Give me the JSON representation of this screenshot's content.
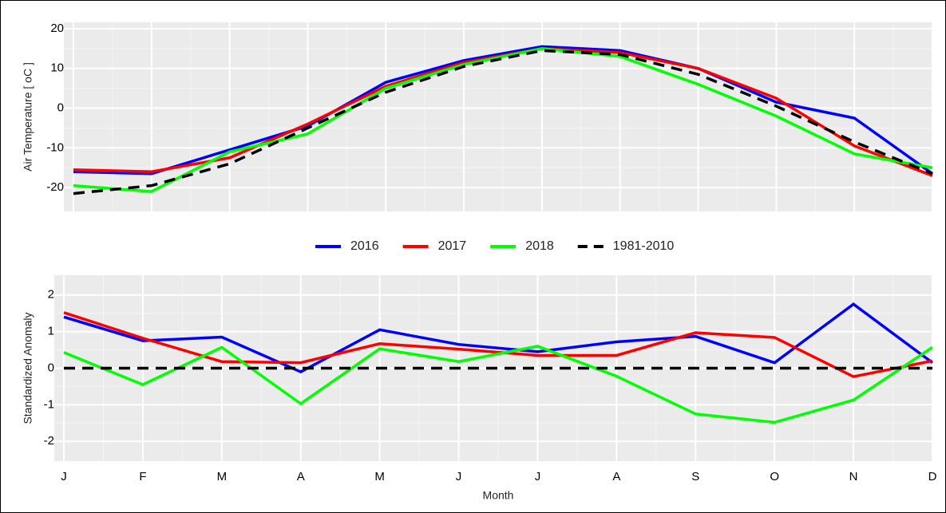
{
  "chart_data": [
    {
      "type": "line",
      "y_label": "Air Temperature [ oC ]",
      "categories": [
        null,
        null,
        null,
        null,
        null,
        null,
        null,
        null,
        null,
        null,
        null,
        null
      ],
      "ylim": [
        -26,
        21.6
      ],
      "yticks": [
        -20,
        -10,
        0,
        10,
        20
      ],
      "grid": true,
      "legend": "bottom",
      "series": [
        {
          "name": "2016",
          "color": "#0000ff",
          "values": [
            -16,
            -16.5,
            -10.5,
            -4.5,
            6.5,
            12,
            15.5,
            14.5,
            10,
            1.5,
            -2.5,
            -16.5
          ]
        },
        {
          "name": "2017",
          "color": "#ff0000",
          "values": [
            -15.5,
            -16,
            -12.5,
            -4,
            5.5,
            11.5,
            15,
            14,
            10,
            2.5,
            -9.5,
            -17
          ]
        },
        {
          "name": "2018",
          "color": "#00ff00",
          "values": [
            -19.5,
            -21,
            -11,
            -6.5,
            5,
            11,
            15,
            13,
            6,
            -2,
            -11.5,
            -15
          ]
        },
        {
          "name": "1981-2010",
          "color": "#000000",
          "dashed": true,
          "values": [
            -21.5,
            -19.5,
            -14,
            -5,
            4,
            10.5,
            14.5,
            13.5,
            8.5,
            0.5,
            -8.5,
            -16.5
          ]
        }
      ]
    },
    {
      "type": "line",
      "y_label": "Standardized Anomaly",
      "x_label": "Month",
      "categories": [
        "J",
        "F",
        "M",
        "A",
        "M",
        "J",
        "J",
        "A",
        "S",
        "O",
        "N",
        "D"
      ],
      "ylim": [
        -2.54,
        2.54
      ],
      "yticks": [
        -2,
        -1,
        0,
        1,
        2
      ],
      "grid": true,
      "series": [
        {
          "color": "#0000ff",
          "values": [
            1.4,
            0.75,
            0.85,
            -0.1,
            1.05,
            0.65,
            0.45,
            0.72,
            0.87,
            0.15,
            1.75,
            0.15
          ]
        },
        {
          "color": "#ff0000",
          "values": [
            1.52,
            0.82,
            0.18,
            0.15,
            0.67,
            0.52,
            0.35,
            0.35,
            0.97,
            0.84,
            -0.23,
            0.2
          ]
        },
        {
          "color": "#00ff00",
          "values": [
            0.43,
            -0.45,
            0.57,
            -0.97,
            0.53,
            0.18,
            0.6,
            -0.22,
            -1.25,
            -1.48,
            -0.87,
            0.57
          ]
        },
        {
          "color": "#000000",
          "dashed": true,
          "values": [
            0,
            0,
            0,
            0,
            0,
            0,
            0,
            0,
            0,
            0,
            0,
            0
          ]
        }
      ]
    }
  ]
}
